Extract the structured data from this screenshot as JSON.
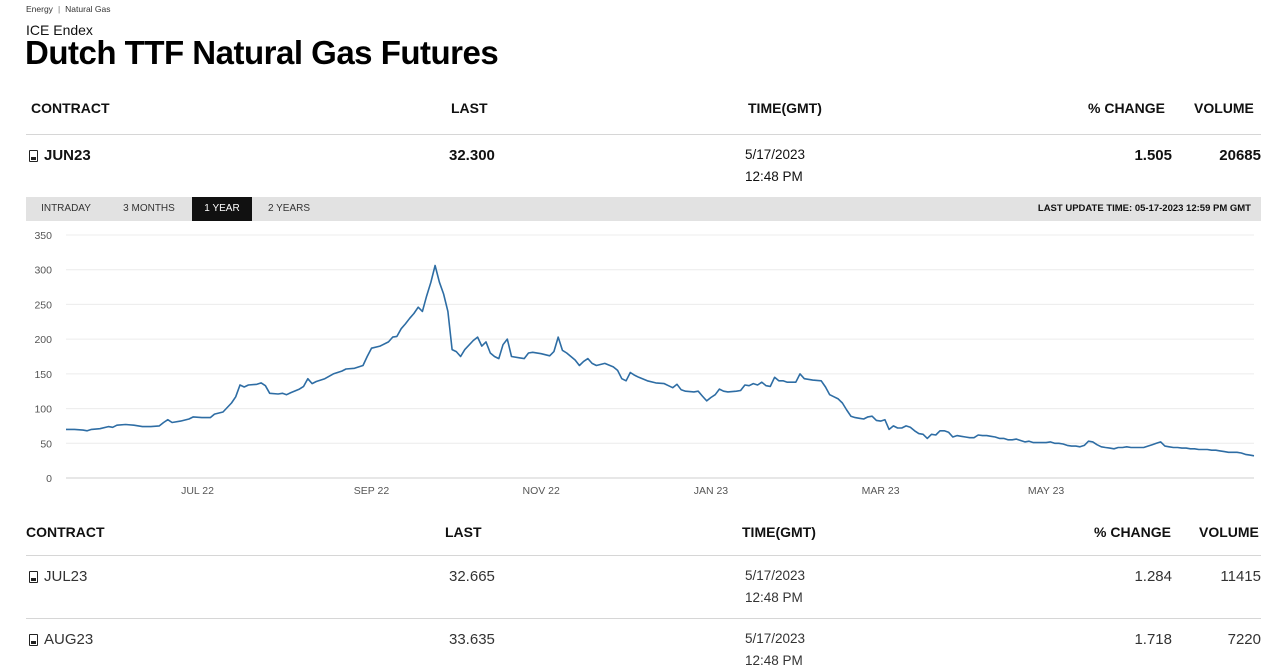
{
  "breadcrumb": {
    "items": [
      "Energy",
      "Natural Gas"
    ],
    "separator": "|"
  },
  "exchange": "ICE Endex",
  "title": "Dutch TTF Natural Gas Futures",
  "columns": {
    "contract": "CONTRACT",
    "last": "LAST",
    "time": "TIME(GMT)",
    "change": "% CHANGE",
    "volume": "VOLUME"
  },
  "lead_contract": {
    "contract": "JUN23",
    "last": "32.300",
    "date": "5/17/2023",
    "time": "12:48 PM",
    "change": "1.505",
    "volume": "20685"
  },
  "range_tabs": [
    "INTRADAY",
    "3 MONTHS",
    "1 YEAR",
    "2 YEARS"
  ],
  "range_selected": "1 YEAR",
  "last_update": "LAST UPDATE TIME: 05-17-2023 12:59 PM GMT",
  "chart_data": {
    "type": "line",
    "title": "",
    "xlabel": "",
    "ylabel": "",
    "yticks": [
      0,
      50,
      100,
      150,
      200,
      250,
      300,
      350
    ],
    "ylim": [
      0,
      350
    ],
    "xticks": [
      "JUL 22",
      "SEP 22",
      "NOV 22",
      "JAN 23",
      "MAR 23",
      "MAY 23"
    ],
    "grid": true,
    "line_color": "#2e6da4",
    "series": [
      {
        "values": [
          [
            0,
            70
          ],
          [
            2,
            70
          ],
          [
            4,
            69
          ],
          [
            5,
            68
          ],
          [
            6,
            70
          ],
          [
            8,
            71
          ],
          [
            10,
            74
          ],
          [
            11,
            73
          ],
          [
            12,
            76
          ],
          [
            14,
            77
          ],
          [
            16,
            76
          ],
          [
            18,
            74
          ],
          [
            20,
            74
          ],
          [
            22,
            75
          ],
          [
            23,
            80
          ],
          [
            24,
            84
          ],
          [
            25,
            80
          ],
          [
            27,
            82
          ],
          [
            29,
            85
          ],
          [
            30,
            88
          ],
          [
            32,
            87
          ],
          [
            34,
            87
          ],
          [
            35,
            92
          ],
          [
            37,
            95
          ],
          [
            39,
            108
          ],
          [
            40,
            117
          ],
          [
            41,
            134
          ],
          [
            42,
            131
          ],
          [
            43,
            134
          ],
          [
            45,
            135
          ],
          [
            46,
            137
          ],
          [
            47,
            133
          ],
          [
            48,
            122
          ],
          [
            50,
            121
          ],
          [
            51,
            122
          ],
          [
            52,
            120
          ],
          [
            53,
            123
          ],
          [
            55,
            128
          ],
          [
            56,
            132
          ],
          [
            57,
            143
          ],
          [
            58,
            136
          ],
          [
            59,
            139
          ],
          [
            61,
            143
          ],
          [
            63,
            150
          ],
          [
            65,
            154
          ],
          [
            66,
            157
          ],
          [
            68,
            158
          ],
          [
            70,
            162
          ],
          [
            71,
            175
          ],
          [
            72,
            187
          ],
          [
            74,
            190
          ],
          [
            76,
            196
          ],
          [
            77,
            203
          ],
          [
            78,
            204
          ],
          [
            79,
            215
          ],
          [
            80,
            222
          ],
          [
            81,
            230
          ],
          [
            82,
            237
          ],
          [
            83,
            246
          ],
          [
            84,
            240
          ],
          [
            85,
            262
          ],
          [
            86,
            282
          ],
          [
            87,
            306
          ],
          [
            88,
            282
          ],
          [
            89,
            265
          ],
          [
            90,
            240
          ],
          [
            91,
            185
          ],
          [
            92,
            182
          ],
          [
            93,
            175
          ],
          [
            94,
            185
          ],
          [
            96,
            198
          ],
          [
            97,
            203
          ],
          [
            98,
            190
          ],
          [
            99,
            196
          ],
          [
            100,
            180
          ],
          [
            101,
            175
          ],
          [
            102,
            172
          ],
          [
            103,
            192
          ],
          [
            104,
            200
          ],
          [
            105,
            175
          ],
          [
            107,
            173
          ],
          [
            108,
            172
          ],
          [
            109,
            180
          ],
          [
            110,
            181
          ],
          [
            112,
            179
          ],
          [
            114,
            176
          ],
          [
            115,
            182
          ],
          [
            116,
            203
          ],
          [
            117,
            184
          ],
          [
            118,
            180
          ],
          [
            119,
            175
          ],
          [
            120,
            170
          ],
          [
            121,
            162
          ],
          [
            122,
            168
          ],
          [
            123,
            172
          ],
          [
            124,
            165
          ],
          [
            125,
            162
          ],
          [
            127,
            165
          ],
          [
            129,
            160
          ],
          [
            130,
            155
          ],
          [
            131,
            143
          ],
          [
            132,
            140
          ],
          [
            133,
            152
          ],
          [
            134,
            148
          ],
          [
            135,
            145
          ],
          [
            137,
            140
          ],
          [
            139,
            137
          ],
          [
            141,
            136
          ],
          [
            142,
            133
          ],
          [
            143,
            130
          ],
          [
            144,
            135
          ],
          [
            145,
            127
          ],
          [
            146,
            125
          ],
          [
            148,
            124
          ],
          [
            149,
            125
          ],
          [
            150,
            118
          ],
          [
            151,
            111
          ],
          [
            152,
            116
          ],
          [
            153,
            120
          ],
          [
            154,
            128
          ],
          [
            155,
            125
          ],
          [
            156,
            124
          ],
          [
            158,
            125
          ],
          [
            159,
            126
          ],
          [
            160,
            134
          ],
          [
            161,
            133
          ],
          [
            162,
            136
          ],
          [
            163,
            134
          ],
          [
            164,
            138
          ],
          [
            165,
            133
          ],
          [
            166,
            132
          ],
          [
            167,
            145
          ],
          [
            168,
            140
          ],
          [
            169,
            140
          ],
          [
            170,
            138
          ],
          [
            172,
            138
          ],
          [
            173,
            150
          ],
          [
            174,
            143
          ],
          [
            176,
            141
          ],
          [
            178,
            140
          ],
          [
            179,
            131
          ],
          [
            180,
            120
          ],
          [
            181,
            117
          ],
          [
            182,
            114
          ],
          [
            183,
            108
          ],
          [
            184,
            98
          ],
          [
            185,
            89
          ],
          [
            186,
            87
          ],
          [
            187,
            86
          ],
          [
            188,
            85
          ],
          [
            189,
            88
          ],
          [
            190,
            89
          ],
          [
            191,
            83
          ],
          [
            192,
            82
          ],
          [
            193,
            84
          ],
          [
            194,
            70
          ],
          [
            195,
            75
          ],
          [
            196,
            72
          ],
          [
            197,
            72
          ],
          [
            198,
            75
          ],
          [
            199,
            73
          ],
          [
            200,
            68
          ],
          [
            201,
            64
          ],
          [
            202,
            63
          ],
          [
            203,
            57
          ],
          [
            204,
            63
          ],
          [
            205,
            62
          ],
          [
            206,
            68
          ],
          [
            207,
            68
          ],
          [
            208,
            66
          ],
          [
            209,
            59
          ],
          [
            210,
            61
          ],
          [
            211,
            60
          ],
          [
            212,
            59
          ],
          [
            213,
            58
          ],
          [
            214,
            58
          ],
          [
            215,
            62
          ],
          [
            216,
            61
          ],
          [
            217,
            61
          ],
          [
            218,
            60
          ],
          [
            219,
            59
          ],
          [
            220,
            57
          ],
          [
            221,
            57
          ],
          [
            222,
            55
          ],
          [
            223,
            55
          ],
          [
            224,
            56
          ],
          [
            225,
            54
          ],
          [
            226,
            52
          ],
          [
            227,
            53
          ],
          [
            228,
            51
          ],
          [
            229,
            51
          ],
          [
            230,
            51
          ],
          [
            231,
            51
          ],
          [
            232,
            52
          ],
          [
            233,
            50
          ],
          [
            234,
            50
          ],
          [
            235,
            49
          ],
          [
            236,
            47
          ],
          [
            237,
            46
          ],
          [
            238,
            46
          ],
          [
            239,
            45
          ],
          [
            240,
            47
          ],
          [
            241,
            53
          ],
          [
            242,
            52
          ],
          [
            243,
            48
          ],
          [
            244,
            45
          ],
          [
            245,
            44
          ],
          [
            246,
            43
          ],
          [
            247,
            42
          ],
          [
            248,
            44
          ],
          [
            249,
            44
          ],
          [
            250,
            45
          ],
          [
            251,
            44
          ],
          [
            252,
            44
          ],
          [
            253,
            44
          ],
          [
            254,
            44
          ],
          [
            255,
            46
          ],
          [
            256,
            48
          ],
          [
            257,
            50
          ],
          [
            258,
            52
          ],
          [
            259,
            46
          ],
          [
            260,
            45
          ],
          [
            261,
            44
          ],
          [
            262,
            44
          ],
          [
            263,
            43
          ],
          [
            264,
            43
          ],
          [
            265,
            42
          ],
          [
            266,
            42
          ],
          [
            267,
            41
          ],
          [
            268,
            41
          ],
          [
            269,
            41
          ],
          [
            270,
            40
          ],
          [
            271,
            40
          ],
          [
            272,
            39
          ],
          [
            273,
            38
          ],
          [
            274,
            37
          ],
          [
            275,
            37
          ],
          [
            276,
            37
          ],
          [
            277,
            36
          ],
          [
            278,
            34
          ],
          [
            279,
            33
          ],
          [
            280,
            32
          ]
        ]
      }
    ],
    "xtick_positions": [
      31,
      72,
      112,
      152,
      192,
      231
    ],
    "x_domain": [
      0,
      280
    ]
  },
  "contracts": [
    {
      "contract": "JUL23",
      "last": "32.665",
      "date": "5/17/2023",
      "time": "12:48 PM",
      "change": "1.284",
      "volume": "11415"
    },
    {
      "contract": "AUG23",
      "last": "33.635",
      "date": "5/17/2023",
      "time": "12:48 PM",
      "change": "1.718",
      "volume": "7220"
    }
  ]
}
